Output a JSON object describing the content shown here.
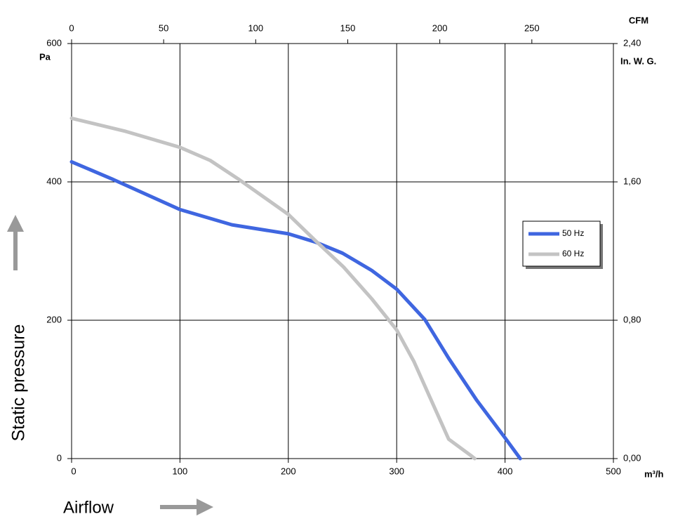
{
  "chart_data": {
    "type": "line",
    "y_unit": "Pa",
    "x_unit": "m³/h",
    "x2_unit": "CFM",
    "y2_unit": "In. W. G.",
    "y_axis_label": "Static pressure",
    "x_axis_label": "Airflow",
    "xlim": [
      0,
      500
    ],
    "xticks": [
      0,
      100,
      200,
      300,
      400,
      500
    ],
    "ylim": [
      0,
      600
    ],
    "yticks": [
      0,
      200,
      400,
      600
    ],
    "x2lim": [
      0,
      294.3
    ],
    "x2ticks": [
      0,
      50,
      100,
      150,
      200,
      250
    ],
    "y2lim": [
      0,
      2.4
    ],
    "y2ticks": [
      {
        "value": 0,
        "label": "0,00"
      },
      {
        "value": 0.8,
        "label": "0,80"
      },
      {
        "value": 1.6,
        "label": "1,60"
      },
      {
        "value": 2.4,
        "label": "2,40"
      }
    ],
    "grid": true,
    "legend": "right",
    "series": [
      {
        "name": "50 Hz",
        "color": "#3f66e0",
        "x": [
          0,
          37.6,
          100,
          148,
          200,
          225,
          250,
          277,
          300,
          326,
          348,
          374,
          400,
          414
        ],
        "values": [
          429,
          404,
          360,
          338,
          325,
          313,
          297,
          272,
          245,
          201,
          145,
          84,
          30,
          0
        ]
      },
      {
        "name": "60 Hz",
        "color": "#c3c3c3",
        "x": [
          0,
          50,
          100,
          128,
          154,
          200,
          225,
          251,
          277,
          300,
          316,
          332,
          348,
          368,
          372
        ],
        "values": [
          492,
          473,
          450,
          431,
          404,
          353,
          315,
          277,
          231,
          186,
          140,
          84,
          28,
          5,
          0
        ]
      }
    ]
  }
}
